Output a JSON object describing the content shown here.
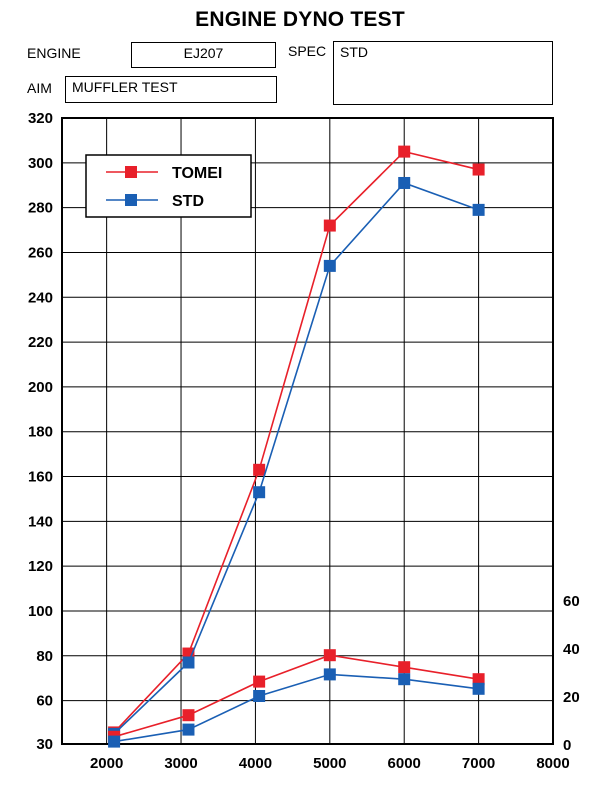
{
  "header": {
    "title": "ENGINE DYNO TEST",
    "engine_label": "ENGINE",
    "engine_value": "EJ207",
    "spec_label": "SPEC",
    "spec_value": "STD",
    "aim_label": "AIM",
    "aim_value": "MUFFLER TEST"
  },
  "chart_data": {
    "type": "line",
    "title": "ENGINE DYNO TEST",
    "xlabel": "",
    "ylabel": "",
    "x_ticks": [
      2000,
      3000,
      4000,
      5000,
      6000,
      7000,
      8000
    ],
    "xlim": [
      1400,
      8000
    ],
    "y_ticks_left": [
      30,
      60,
      80,
      100,
      120,
      140,
      160,
      180,
      200,
      220,
      240,
      260,
      280,
      300,
      320
    ],
    "y_ticks_right": [
      0,
      20,
      40,
      60
    ],
    "grid": true,
    "legend_position": "top-left",
    "colors": {
      "TOMEI": "#e8202a",
      "STD": "#1a5fb4"
    },
    "series": [
      {
        "name": "TOMEI",
        "axis": "left",
        "group": "upper",
        "x": [
          2100,
          3100,
          4050,
          5000,
          6000,
          7000
        ],
        "values": [
          38,
          81,
          163,
          272,
          305,
          297
        ]
      },
      {
        "name": "STD",
        "axis": "left",
        "group": "upper",
        "x": [
          2100,
          3100,
          4050,
          5000,
          6000,
          7000
        ],
        "values": [
          37,
          77,
          153,
          254,
          291,
          279
        ]
      },
      {
        "name": "TOMEI",
        "axis": "right",
        "group": "lower",
        "x": [
          2100,
          3100,
          4050,
          5000,
          6000,
          7000
        ],
        "values": [
          3,
          12,
          26,
          37,
          32,
          27
        ]
      },
      {
        "name": "STD",
        "axis": "right",
        "group": "lower",
        "x": [
          2100,
          3100,
          4050,
          5000,
          6000,
          7000
        ],
        "values": [
          1,
          6,
          20,
          29,
          27,
          23
        ]
      }
    ]
  }
}
